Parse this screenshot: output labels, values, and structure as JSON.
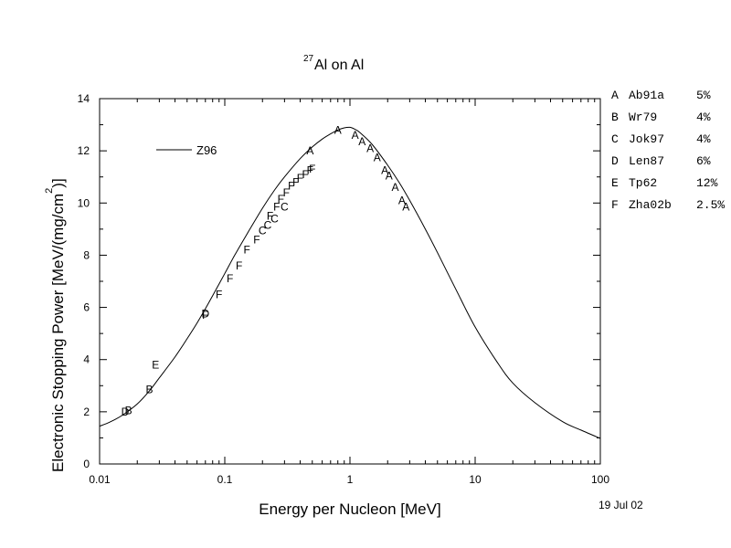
{
  "chart_data": {
    "type": "scatter",
    "title_super": "27",
    "title_main": "Al on Al",
    "xlabel": "Energy per Nucleon [MeV]",
    "ylabel_main": "Electronic Stopping Power [MeV/(mg/cm",
    "ylabel_super": "2",
    "ylabel_close": ")]",
    "xscale": "log",
    "xlim": [
      0.01,
      100
    ],
    "ylim": [
      0,
      14
    ],
    "x_ticks": [
      {
        "value": 0.01,
        "label": "0.01"
      },
      {
        "value": 0.1,
        "label": "0.1"
      },
      {
        "value": 1,
        "label": "1"
      },
      {
        "value": 10,
        "label": "10"
      },
      {
        "value": 100,
        "label": "100"
      }
    ],
    "y_ticks": [
      {
        "value": 0,
        "label": "0"
      },
      {
        "value": 2,
        "label": "2"
      },
      {
        "value": 4,
        "label": "4"
      },
      {
        "value": 6,
        "label": "6"
      },
      {
        "value": 8,
        "label": "8"
      },
      {
        "value": 10,
        "label": "10"
      },
      {
        "value": 12,
        "label": "12"
      },
      {
        "value": 14,
        "label": "14"
      }
    ],
    "date_label": "19 Jul 02",
    "grid": false,
    "curve": {
      "name": "Z96",
      "x": [
        0.01,
        0.012,
        0.015,
        0.02,
        0.025,
        0.03,
        0.04,
        0.05,
        0.06,
        0.07,
        0.08,
        0.1,
        0.12,
        0.15,
        0.2,
        0.25,
        0.3,
        0.4,
        0.5,
        0.6,
        0.7,
        0.8,
        0.9,
        1.0,
        1.1,
        1.2,
        1.5,
        2,
        2.5,
        3,
        4,
        5,
        7,
        10,
        15,
        20,
        30,
        50,
        70,
        100
      ],
      "y": [
        1.45,
        1.6,
        1.85,
        2.3,
        2.8,
        3.3,
        4.1,
        4.8,
        5.4,
        5.95,
        6.45,
        7.3,
        8.0,
        8.8,
        9.8,
        10.5,
        11.0,
        11.7,
        12.15,
        12.45,
        12.65,
        12.8,
        12.88,
        12.9,
        12.82,
        12.7,
        12.25,
        11.45,
        10.75,
        10.1,
        9.0,
        8.1,
        6.7,
        5.25,
        3.9,
        3.1,
        2.35,
        1.62,
        1.3,
        0.98
      ]
    },
    "series": [
      {
        "name": "A",
        "x": [
          0.48,
          0.8,
          1.1,
          1.25,
          1.45,
          1.65,
          1.9,
          2.05,
          2.3,
          2.6,
          2.8
        ],
        "y": [
          12.0,
          12.8,
          12.6,
          12.35,
          12.1,
          11.75,
          11.25,
          11.05,
          10.6,
          10.1,
          9.85
        ]
      },
      {
        "name": "B",
        "x": [
          0.017,
          0.025
        ],
        "y": [
          2.05,
          2.85
        ]
      },
      {
        "name": "C",
        "x": [
          0.2,
          0.22,
          0.25,
          0.3
        ],
        "y": [
          8.95,
          9.15,
          9.4,
          9.85
        ]
      },
      {
        "name": "D",
        "x": [
          0.016,
          0.07
        ],
        "y": [
          2.0,
          5.75
        ]
      },
      {
        "name": "E",
        "x": [
          0.028
        ],
        "y": [
          3.8
        ]
      },
      {
        "name": "F",
        "x": [
          0.07,
          0.09,
          0.11,
          0.13,
          0.15,
          0.18,
          0.23,
          0.26,
          0.28,
          0.31,
          0.34,
          0.37,
          0.4,
          0.44,
          0.48,
          0.5
        ],
        "y": [
          5.7,
          6.5,
          7.1,
          7.6,
          8.2,
          8.6,
          9.5,
          9.85,
          10.15,
          10.4,
          10.65,
          10.8,
          10.95,
          11.1,
          11.25,
          11.3
        ]
      }
    ],
    "references": [
      {
        "letter": "A",
        "name": "Ab91a",
        "unc": "5%"
      },
      {
        "letter": "B",
        "name": "Wr79",
        "unc": "4%"
      },
      {
        "letter": "C",
        "name": "Jok97",
        "unc": "4%"
      },
      {
        "letter": "D",
        "name": "Len87",
        "unc": "6%"
      },
      {
        "letter": "E",
        "name": "Tp62",
        "unc": "12%"
      },
      {
        "letter": "F",
        "name": "Zha02b",
        "unc": "2.5%"
      }
    ]
  }
}
